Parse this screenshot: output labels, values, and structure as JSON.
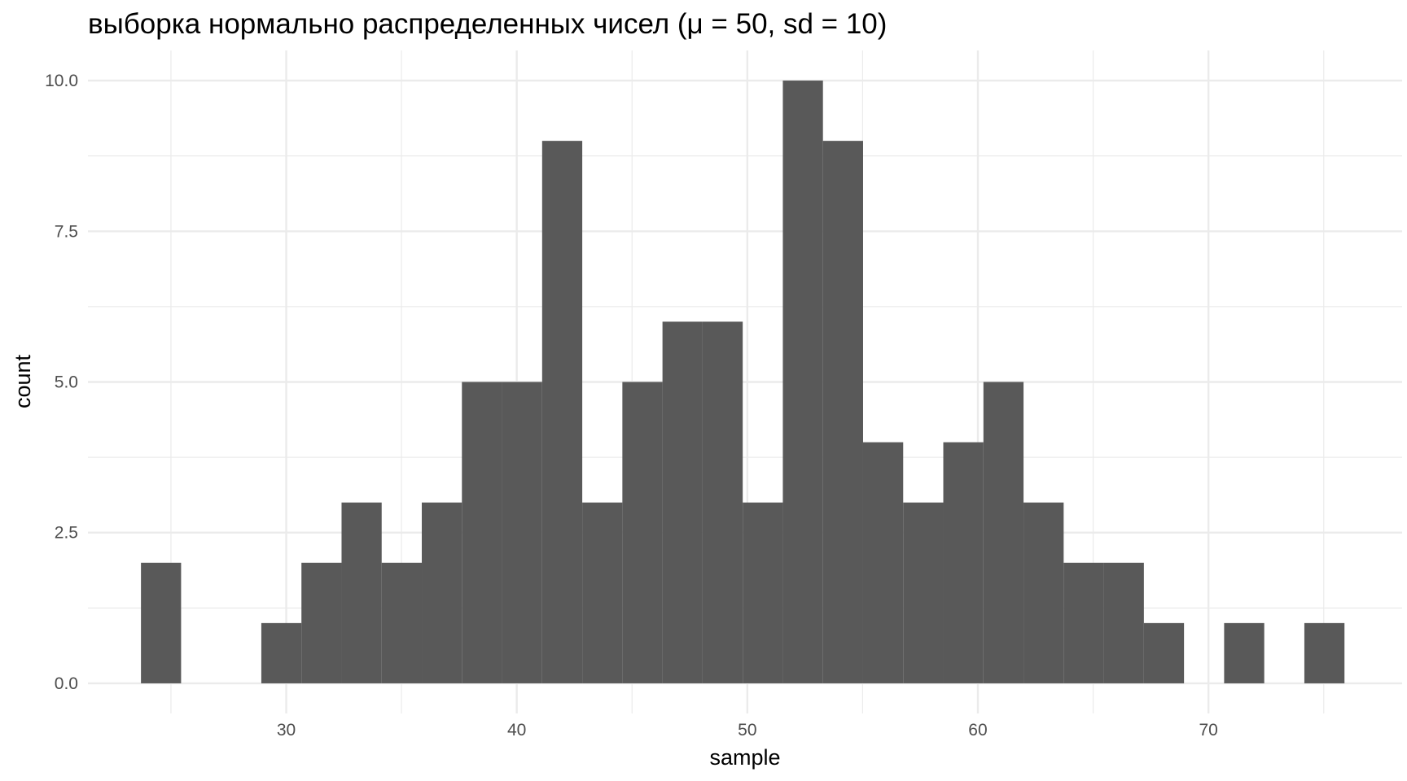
{
  "chart_data": {
    "type": "bar",
    "title": "выборка нормально распределенных чисел (μ = 50, sd = 10)",
    "xlabel": "sample",
    "ylabel": "count",
    "xlim": [
      21.4,
      78.4
    ],
    "ylim": [
      -0.5,
      10.5
    ],
    "x_ticks": [
      30,
      40,
      50,
      60,
      70
    ],
    "x_tick_labels": [
      "30",
      "40",
      "50",
      "60",
      "70"
    ],
    "y_ticks": [
      0,
      2.5,
      5,
      7.5,
      10
    ],
    "y_tick_labels": [
      "0.0",
      "2.5",
      "5.0",
      "7.5",
      "10.0"
    ],
    "bin_width": 1.74,
    "bins": [
      {
        "x_start": 23.7,
        "count": 2
      },
      {
        "x_start": 25.44,
        "count": 0
      },
      {
        "x_start": 27.18,
        "count": 0
      },
      {
        "x_start": 28.92,
        "count": 1
      },
      {
        "x_start": 30.66,
        "count": 2
      },
      {
        "x_start": 32.4,
        "count": 3
      },
      {
        "x_start": 34.14,
        "count": 2
      },
      {
        "x_start": 35.88,
        "count": 3
      },
      {
        "x_start": 37.62,
        "count": 5
      },
      {
        "x_start": 39.36,
        "count": 5
      },
      {
        "x_start": 41.1,
        "count": 9
      },
      {
        "x_start": 42.84,
        "count": 3
      },
      {
        "x_start": 44.58,
        "count": 5
      },
      {
        "x_start": 46.32,
        "count": 6
      },
      {
        "x_start": 48.06,
        "count": 6
      },
      {
        "x_start": 49.8,
        "count": 3
      },
      {
        "x_start": 51.54,
        "count": 10
      },
      {
        "x_start": 53.28,
        "count": 9
      },
      {
        "x_start": 55.02,
        "count": 4
      },
      {
        "x_start": 56.76,
        "count": 3
      },
      {
        "x_start": 58.5,
        "count": 4
      },
      {
        "x_start": 60.24,
        "count": 5
      },
      {
        "x_start": 61.98,
        "count": 3
      },
      {
        "x_start": 63.72,
        "count": 2
      },
      {
        "x_start": 65.46,
        "count": 2
      },
      {
        "x_start": 67.2,
        "count": 1
      },
      {
        "x_start": 68.94,
        "count": 0
      },
      {
        "x_start": 70.68,
        "count": 1
      },
      {
        "x_start": 72.42,
        "count": 0
      },
      {
        "x_start": 74.16,
        "count": 1
      }
    ],
    "grid": true,
    "bar_color": "#595959",
    "grid_color": "#ebebeb"
  }
}
